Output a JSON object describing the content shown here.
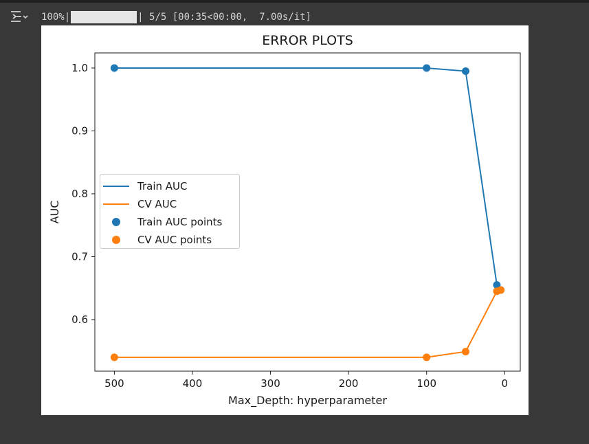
{
  "cell_output": {
    "icon": "output-toggle-icon",
    "progress": {
      "percent_text": "100%|",
      "fraction": 1.0,
      "suffix_text": "| 5/5 [00:35<00:00,  7.00s/it]"
    }
  },
  "colors": {
    "train": "#1f77b4",
    "cv": "#ff7f0e",
    "page_background": "#383838",
    "plot_background": "#ffffff"
  },
  "chart_data": {
    "type": "line",
    "title": "ERROR PLOTS",
    "xlabel": "Max_Depth: hyperparameter",
    "ylabel": "AUC",
    "xlim": [
      525,
      -20
    ],
    "ylim": [
      0.518,
      1.024
    ],
    "x_inverted": true,
    "x_ticks": [
      500,
      400,
      300,
      200,
      100,
      0
    ],
    "y_ticks": [
      0.6,
      0.7,
      0.8,
      0.9,
      1.0
    ],
    "x_tick_labels": [
      "500",
      "400",
      "300",
      "200",
      "100",
      "0"
    ],
    "y_tick_labels": [
      "0.6",
      "0.7",
      "0.8",
      "0.9",
      "1.0"
    ],
    "x": [
      500,
      100,
      50,
      10,
      5
    ],
    "series": [
      {
        "name": "Train AUC",
        "values": [
          1.0,
          1.0,
          0.995,
          0.655,
          0.647
        ],
        "color": "#1f77b4"
      },
      {
        "name": "CV AUC",
        "values": [
          0.54,
          0.54,
          0.549,
          0.645,
          0.647
        ],
        "color": "#ff7f0e"
      }
    ],
    "legend": {
      "placement": "center-left",
      "entries": [
        {
          "label": "Train AUC",
          "kind": "line",
          "color": "#1f77b4"
        },
        {
          "label": "CV AUC",
          "kind": "line",
          "color": "#ff7f0e"
        },
        {
          "label": "Train AUC points",
          "kind": "marker",
          "color": "#1f77b4"
        },
        {
          "label": "CV AUC points",
          "kind": "marker",
          "color": "#ff7f0e"
        }
      ]
    },
    "grid": false
  }
}
